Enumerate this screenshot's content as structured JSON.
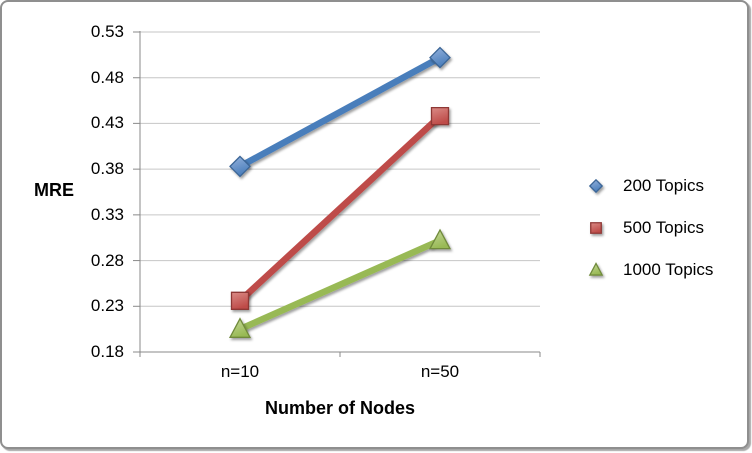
{
  "frame": {
    "background": "#ffffff",
    "border_color": "#8f8f8f"
  },
  "chart_data": {
    "type": "line",
    "title": "",
    "categories": [
      "n=10",
      "n=50"
    ],
    "series": [
      {
        "name": "200 Topics",
        "values": [
          0.383,
          0.502
        ],
        "color": "#4A7EBB",
        "color_light": "#96B3DD",
        "color_dark": "#3B6596",
        "marker": "diamond"
      },
      {
        "name": "500 Topics",
        "values": [
          0.236,
          0.438
        ],
        "color": "#BE4B48",
        "color_light": "#DA8B86",
        "color_dark": "#8E3734",
        "marker": "square"
      },
      {
        "name": "1000 Topics",
        "values": [
          0.205,
          0.302
        ],
        "color": "#98B954",
        "color_light": "#C6D89B",
        "color_dark": "#6F8A3B",
        "marker": "triangle"
      }
    ],
    "xlabel": "Number of Nodes",
    "ylabel": "MRE",
    "ylim": [
      0.18,
      0.53
    ],
    "ytick_step": 0.05,
    "ytick_labels": [
      "0.53",
      "0.48",
      "0.43",
      "0.38",
      "0.33",
      "0.28",
      "0.23",
      "0.18"
    ],
    "grid": true,
    "legend_position": "right",
    "axis_color": "#898989",
    "grid_color": "#C6C6C6",
    "text_color": "#000000"
  }
}
